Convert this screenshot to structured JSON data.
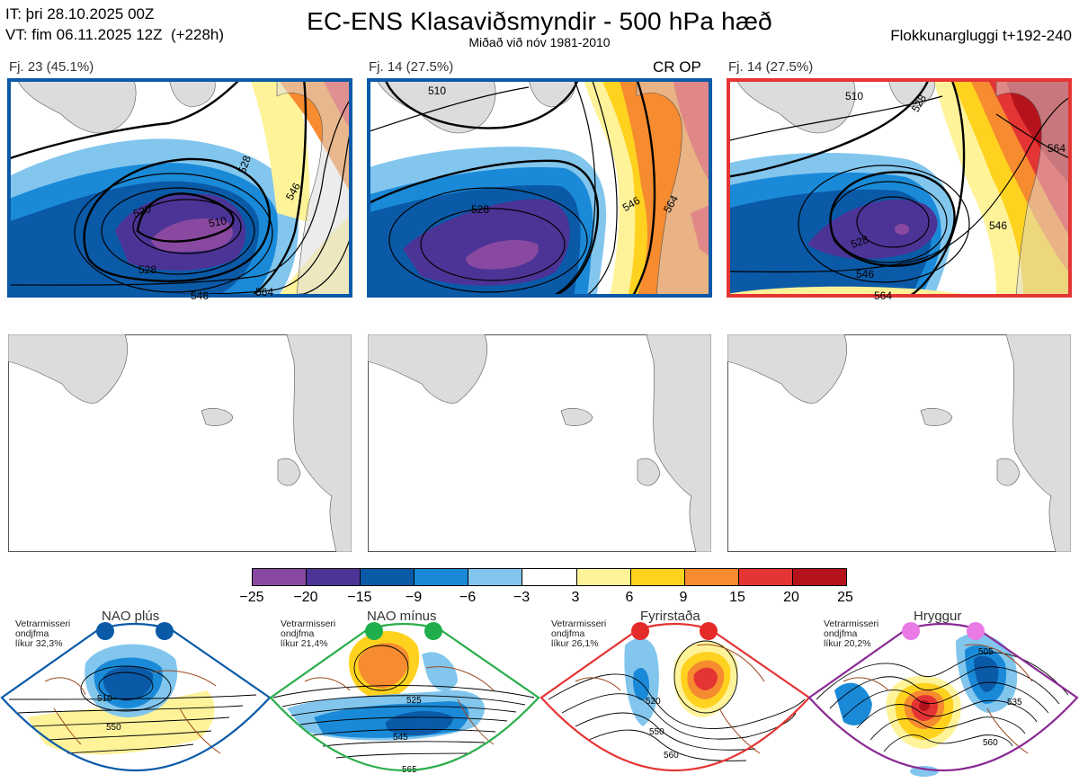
{
  "header": {
    "init_time": "IT: þri 28.10.2025 00Z",
    "valid_time": "VT: fim 06.11.2025 12Z  (+228h)",
    "title": "EC-ENS Klasaviðsmyndir - 500 hPa hæð",
    "subtitle": "Miðað við nóv 1981-2010",
    "window": "Flokkunargluggi t+192-240"
  },
  "clusters": [
    {
      "label": "Fj. 23 (45.1%)",
      "frame_color": "#0a5aa8",
      "contours": [
        "510",
        "528",
        "520",
        "546",
        "564",
        "546",
        "528"
      ]
    },
    {
      "label": "Fj. 14 (27.5%)",
      "frame_color": "#0a5aa8",
      "op_label": "CR OP",
      "contours": [
        "510",
        "528",
        "546",
        "564"
      ]
    },
    {
      "label": "Fj. 14 (27.5%)",
      "frame_color": "#e53434",
      "contours": [
        "510",
        "528",
        "564",
        "528",
        "546",
        "564",
        "546"
      ]
    }
  ],
  "colorbar": {
    "ticks": [
      "−25",
      "−20",
      "−15",
      "−9",
      "−6",
      "−3",
      "3",
      "6",
      "9",
      "15",
      "20",
      "25"
    ],
    "colors": [
      "#8a49a0",
      "#4c3497",
      "#0a5aa8",
      "#1a8ad8",
      "#82c6ee",
      "#ffffff",
      "#fff39a",
      "#ffd21f",
      "#f68b2f",
      "#e53434",
      "#b5131c"
    ]
  },
  "patterns": [
    {
      "name": "NAO plús",
      "note": "Vetrarmisseri\nondjfma\nlíkur 32,3%",
      "dot_color": "#0a5aa8",
      "frame_color": "#0a5aa8",
      "contours": [
        "510",
        "550"
      ]
    },
    {
      "name": "NAO mínus",
      "note": "Vetrarmisseri\nondjfma\nlíkur 21,4%",
      "dot_color": "#1fae4b",
      "frame_color": "#2bae4b",
      "contours": [
        "525",
        "545",
        "565"
      ]
    },
    {
      "name": "Fyrirstaða",
      "note": "Vetrarmisseri\nondjfma\nlíkur 26,1%",
      "dot_color": "#e52a2a",
      "frame_color": "#e53434",
      "contours": [
        "520",
        "550",
        "560"
      ]
    },
    {
      "name": "Hryggur",
      "note": "Vetrarmisseri\nondjfma\nlíkur 20,2%",
      "dot_color": "#e97ae6",
      "frame_color": "#8a2a93",
      "contours": [
        "505",
        "535",
        "560"
      ]
    }
  ]
}
